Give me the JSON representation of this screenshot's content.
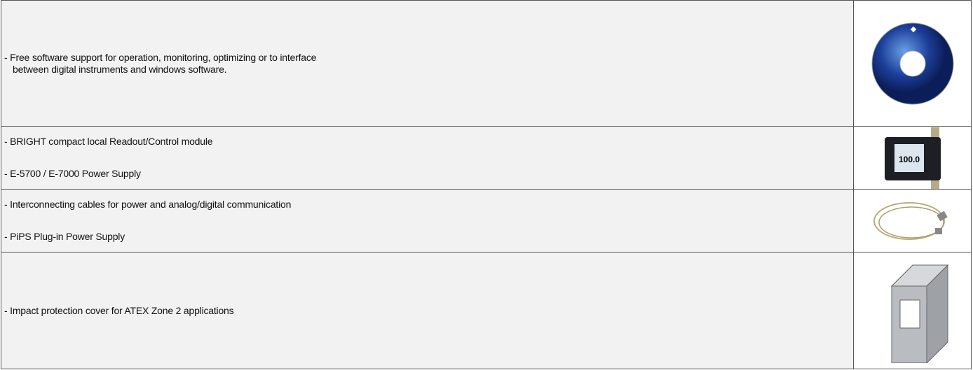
{
  "table": {
    "rows": [
      {
        "items": [
          [
            "- Free software support for operation, monitoring, optimizing or to interface",
            "between digital instruments and windows software."
          ]
        ]
      },
      {
        "items": [
          [
            "- BRIGHT compact local Readout/Control module"
          ],
          [
            "- E-5700 / E-7000 Power Supply"
          ]
        ]
      },
      {
        "items": [
          [
            "- Interconnecting cables for power and analog/digital communication"
          ],
          [
            "- PiPS Plug-in Power Supply"
          ]
        ]
      },
      {
        "items": [
          [
            "- Impact protection cover for ATEX Zone 2 applications"
          ]
        ]
      }
    ]
  }
}
